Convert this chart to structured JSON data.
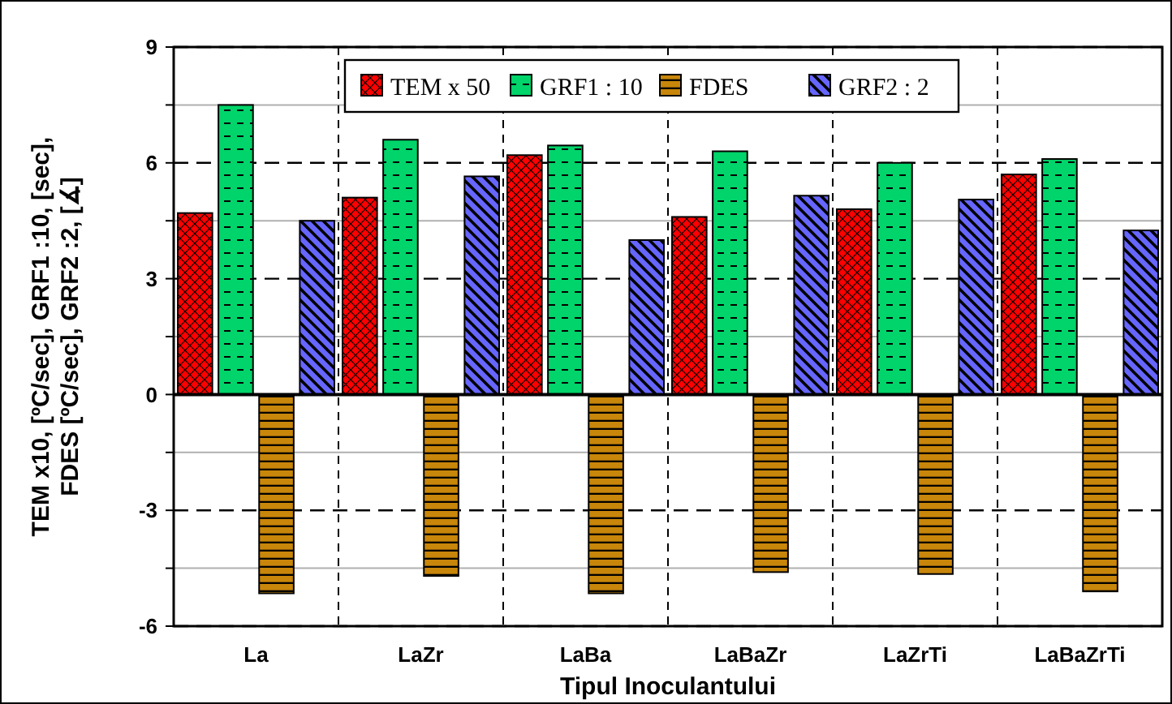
{
  "chart_data": {
    "type": "bar",
    "xlabel": "Tipul Inoculantului",
    "ylabel": "TEM x10, [ºC/sec], GRF1 :10, [sec],\nFDES [ºC/sec], GRF2  :2, [∡]",
    "categories": [
      "La",
      "LaZr",
      "LaBa",
      "LaBaZr",
      "LaZrTi",
      "LaBaZrTi"
    ],
    "series": [
      {
        "name": "TEM x 50",
        "color": "#ff0000",
        "values": [
          4.7,
          5.1,
          6.2,
          4.6,
          4.8,
          5.7
        ]
      },
      {
        "name": "GRF1 : 10",
        "color": "#00d46a",
        "values": [
          7.5,
          6.6,
          6.45,
          6.3,
          6.0,
          6.1
        ]
      },
      {
        "name": "FDES",
        "color": "#c8860a",
        "values": [
          -5.15,
          -4.7,
          -5.15,
          -4.6,
          -4.65,
          -5.1
        ]
      },
      {
        "name": "GRF2 : 2",
        "color": "#6666ff",
        "values": [
          4.5,
          5.65,
          4.0,
          5.15,
          5.05,
          4.25
        ]
      }
    ],
    "ylim": [
      -6,
      9
    ],
    "yticks": [
      -6,
      {
        "value": -4.5,
        "label": null
      },
      -3,
      {
        "value": -1.5,
        "label": null
      },
      0,
      {
        "value": 1.5,
        "label": null
      },
      3,
      {
        "value": 4.5,
        "label": null
      },
      6,
      {
        "value": 7.5,
        "label": null
      },
      9
    ],
    "grid": "y",
    "legend": "top"
  }
}
